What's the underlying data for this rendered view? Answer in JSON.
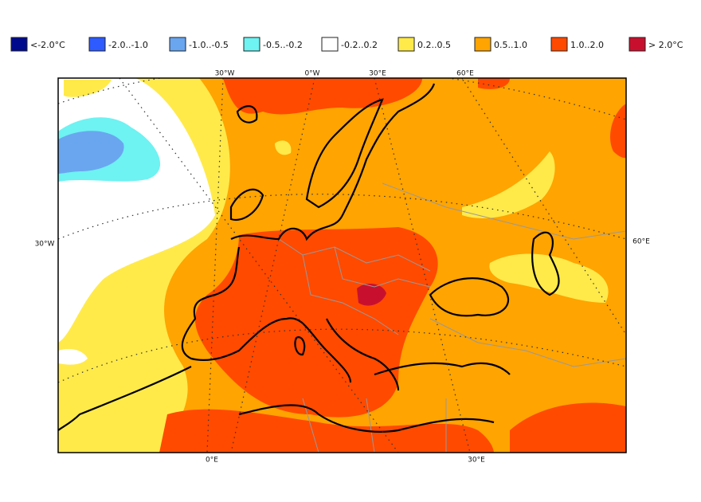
{
  "legend": {
    "items": [
      {
        "label": "<-2.0°C",
        "color": "#000a8c"
      },
      {
        "label": "-2.0..-1.0",
        "color": "#2e5bff"
      },
      {
        "label": "-1.0..-0.5",
        "color": "#6aa6f0"
      },
      {
        "label": "-0.5..-0.2",
        "color": "#6ef2f2"
      },
      {
        "label": "-0.2..0.2",
        "color": "#ffffff"
      },
      {
        "label": "0.2..0.5",
        "color": "#ffea4a"
      },
      {
        "label": "0.5..1.0",
        "color": "#ffa400"
      },
      {
        "label": "1.0..2.0",
        "color": "#ff4a00"
      },
      {
        "label": "> 2.0°C",
        "color": "#c8102e"
      }
    ]
  },
  "map": {
    "top_labels": [
      "30°W",
      "0°W",
      "30°E",
      "60°E"
    ],
    "left_label": "30°W",
    "right_label": "60°E",
    "bottom_labels": [
      "0°E",
      "30°E"
    ]
  }
}
